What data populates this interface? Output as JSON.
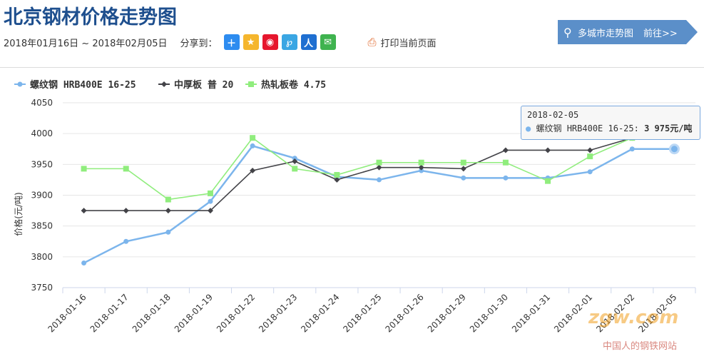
{
  "header": {
    "title": "北京钢材价格走势图",
    "date_range": "2018年01月16日 ~ 2018年02月05日",
    "share_label": "分享到：",
    "print_label": "打印当前页面"
  },
  "banner": {
    "text": "多城市走势图",
    "link": "前往>>"
  },
  "tooltip": {
    "date": "2018-02-05",
    "series": "螺纹钢 HRB400E 16-25:",
    "value": "3 975元/吨"
  },
  "watermark": {
    "logo": "zgw.com",
    "text": "中国人的钢铁网站"
  },
  "colors": {
    "rebar": "#7cb5ec",
    "plate": "#434348",
    "coil": "#90ed7d",
    "title": "#1e4f8e",
    "banner": "#5b8fc9"
  },
  "chart_data": {
    "type": "line",
    "ylabel": "价格(元/吨)",
    "ylim": [
      3750,
      4050
    ],
    "yticks": [
      3750,
      3800,
      3850,
      3900,
      3950,
      4000,
      4050
    ],
    "categories": [
      "2018-01-16",
      "2018-01-17",
      "2018-01-18",
      "2018-01-19",
      "2018-01-22",
      "2018-01-23",
      "2018-01-24",
      "2018-01-25",
      "2018-01-26",
      "2018-01-29",
      "2018-01-30",
      "2018-01-31",
      "2018-02-01",
      "2018-02-02",
      "2018-02-05"
    ],
    "legend_position": "top-left",
    "series": [
      {
        "name": "螺纹钢 HRB400E 16-25",
        "color": "#7cb5ec",
        "marker": "circle",
        "values": [
          3790,
          3825,
          3840,
          3890,
          3980,
          3960,
          3930,
          3925,
          3940,
          3928,
          3928,
          3928,
          3938,
          3975,
          3975
        ]
      },
      {
        "name": "中厚板 普 20",
        "color": "#434348",
        "marker": "diamond",
        "values": [
          3875,
          3875,
          3875,
          3875,
          3940,
          3955,
          3925,
          3945,
          3945,
          3943,
          3973,
          3973,
          3973,
          3993,
          4033
        ]
      },
      {
        "name": "热轧板卷 4.75",
        "color": "#90ed7d",
        "marker": "square",
        "values": [
          3943,
          3943,
          3893,
          3903,
          3993,
          3943,
          3933,
          3953,
          3953,
          3953,
          3953,
          3923,
          3963,
          3993,
          4033
        ]
      }
    ]
  }
}
